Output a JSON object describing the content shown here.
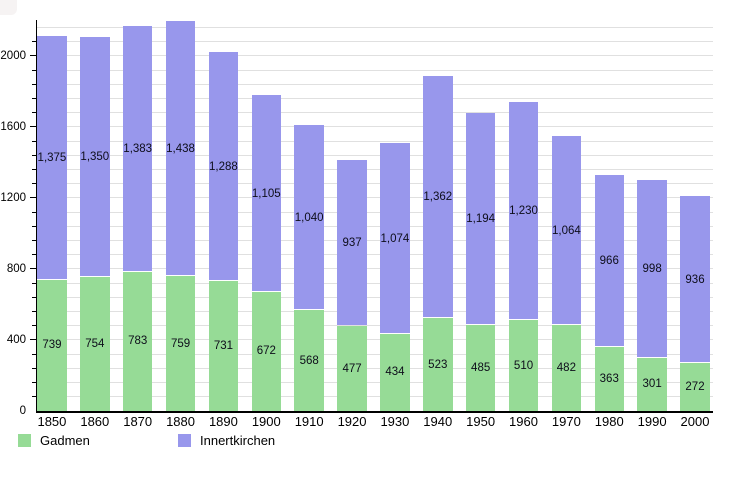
{
  "chart_data": {
    "type": "bar",
    "stacked": true,
    "title": "",
    "xlabel": "",
    "ylabel": "",
    "categories": [
      "1850",
      "1860",
      "1870",
      "1880",
      "1890",
      "1900",
      "1910",
      "1920",
      "1930",
      "1940",
      "1950",
      "1960",
      "1970",
      "1980",
      "1990",
      "2000"
    ],
    "series": [
      {
        "name": "Gadmen",
        "color": "#96DB96",
        "values": [
          739,
          754,
          783,
          759,
          731,
          672,
          568,
          477,
          434,
          523,
          485,
          510,
          482,
          363,
          301,
          272
        ]
      },
      {
        "name": "Innertkirchen",
        "color": "#9897EC",
        "values": [
          1375,
          1350,
          1383,
          1438,
          1288,
          1105,
          1040,
          937,
          1074,
          1362,
          1194,
          1230,
          1064,
          966,
          998,
          936
        ]
      }
    ],
    "ylim": [
      0,
      2200
    ],
    "ytick_major": 400,
    "ytick_minor": 80,
    "ytick_labels": [
      "0",
      "400",
      "800",
      "1200",
      "1600",
      "2000"
    ],
    "grid": true,
    "gridline_color": "#e0e0e0",
    "axis_color": "#000000",
    "value_label_color": "#0d0d1a",
    "legend_position": "bottom"
  }
}
